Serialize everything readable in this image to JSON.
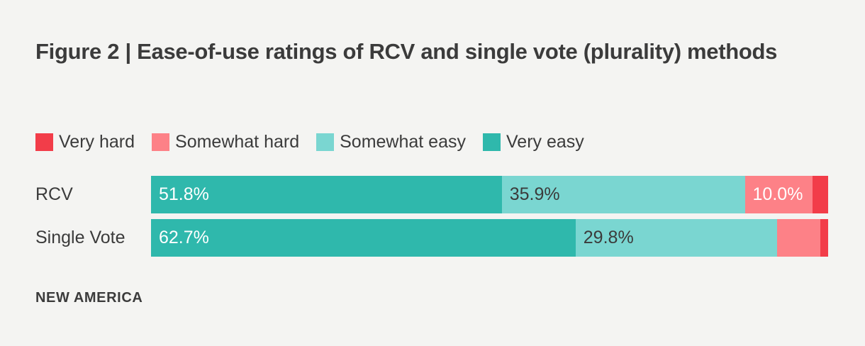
{
  "title": "Figure 2 | Ease-of-use ratings of RCV and single vote (plurality) methods",
  "source_credit": "NEW AMERICA",
  "colors": {
    "background": "#f4f4f2",
    "text": "#3b3b3b",
    "very_hard": "#f23d49",
    "somewhat_hard": "#fd8187",
    "somewhat_easy": "#7ad6d1",
    "very_easy": "#2fb8ac"
  },
  "legend": {
    "position": "top-left",
    "items": [
      {
        "label": "Very hard",
        "color": "#f23d49"
      },
      {
        "label": "Somewhat hard",
        "color": "#fd8187"
      },
      {
        "label": "Somewhat easy",
        "color": "#7ad6d1"
      },
      {
        "label": "Very easy",
        "color": "#2fb8ac"
      }
    ]
  },
  "chart_data": {
    "type": "bar",
    "orientation": "horizontal",
    "stacked": true,
    "unit": "%",
    "xlim": [
      0,
      100
    ],
    "grid": false,
    "legend_position": "top",
    "title": "Figure 2 | Ease-of-use ratings of RCV and single vote (plurality) methods",
    "categories": [
      "RCV",
      "Single Vote"
    ],
    "series": [
      {
        "name": "Very easy",
        "color": "#2fb8ac",
        "label_color": "#ffffff",
        "values": [
          51.8,
          62.7
        ],
        "display_labels": [
          "51.8%",
          "62.7%"
        ]
      },
      {
        "name": "Somewhat easy",
        "color": "#7ad6d1",
        "label_color": "#3b3b3b",
        "values": [
          35.9,
          29.8
        ],
        "display_labels": [
          "35.9%",
          "29.8%"
        ]
      },
      {
        "name": "Somewhat hard",
        "color": "#fd8187",
        "label_color": "#ffffff",
        "values": [
          10.0,
          6.4
        ],
        "display_labels": [
          "10.0%",
          ""
        ]
      },
      {
        "name": "Very hard",
        "color": "#f23d49",
        "label_color": "#ffffff",
        "values": [
          2.3,
          1.1
        ],
        "display_labels": [
          "",
          ""
        ]
      }
    ]
  }
}
